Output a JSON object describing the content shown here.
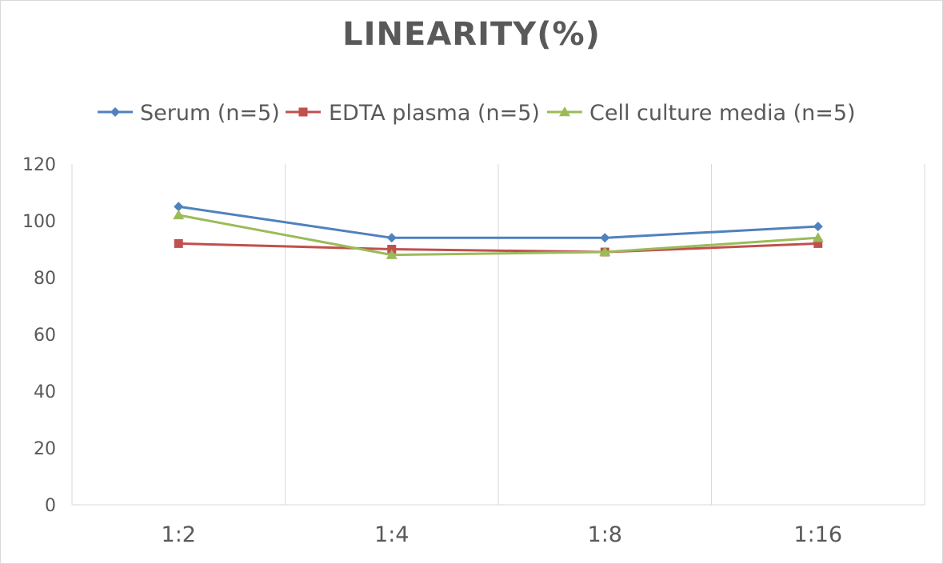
{
  "chart_data": {
    "type": "line",
    "title": "LINEARITY(%)",
    "categories": [
      "1:2",
      "1:4",
      "1:8",
      "1:16"
    ],
    "series": [
      {
        "name": "Serum (n=5)",
        "values": [
          105,
          94,
          94,
          98
        ],
        "color": "#4f81bd",
        "marker": "diamond"
      },
      {
        "name": "EDTA plasma (n=5)",
        "values": [
          92,
          90,
          89,
          92
        ],
        "color": "#c0504d",
        "marker": "square"
      },
      {
        "name": "Cell culture media (n=5)",
        "values": [
          102,
          88,
          89,
          94
        ],
        "color": "#9bbb59",
        "marker": "triangle"
      }
    ],
    "ylim": [
      0,
      120
    ],
    "yticks": [
      "0",
      "20",
      "40",
      "60",
      "80",
      "100",
      "120"
    ],
    "grid": "vertical",
    "legend_position": "top"
  }
}
